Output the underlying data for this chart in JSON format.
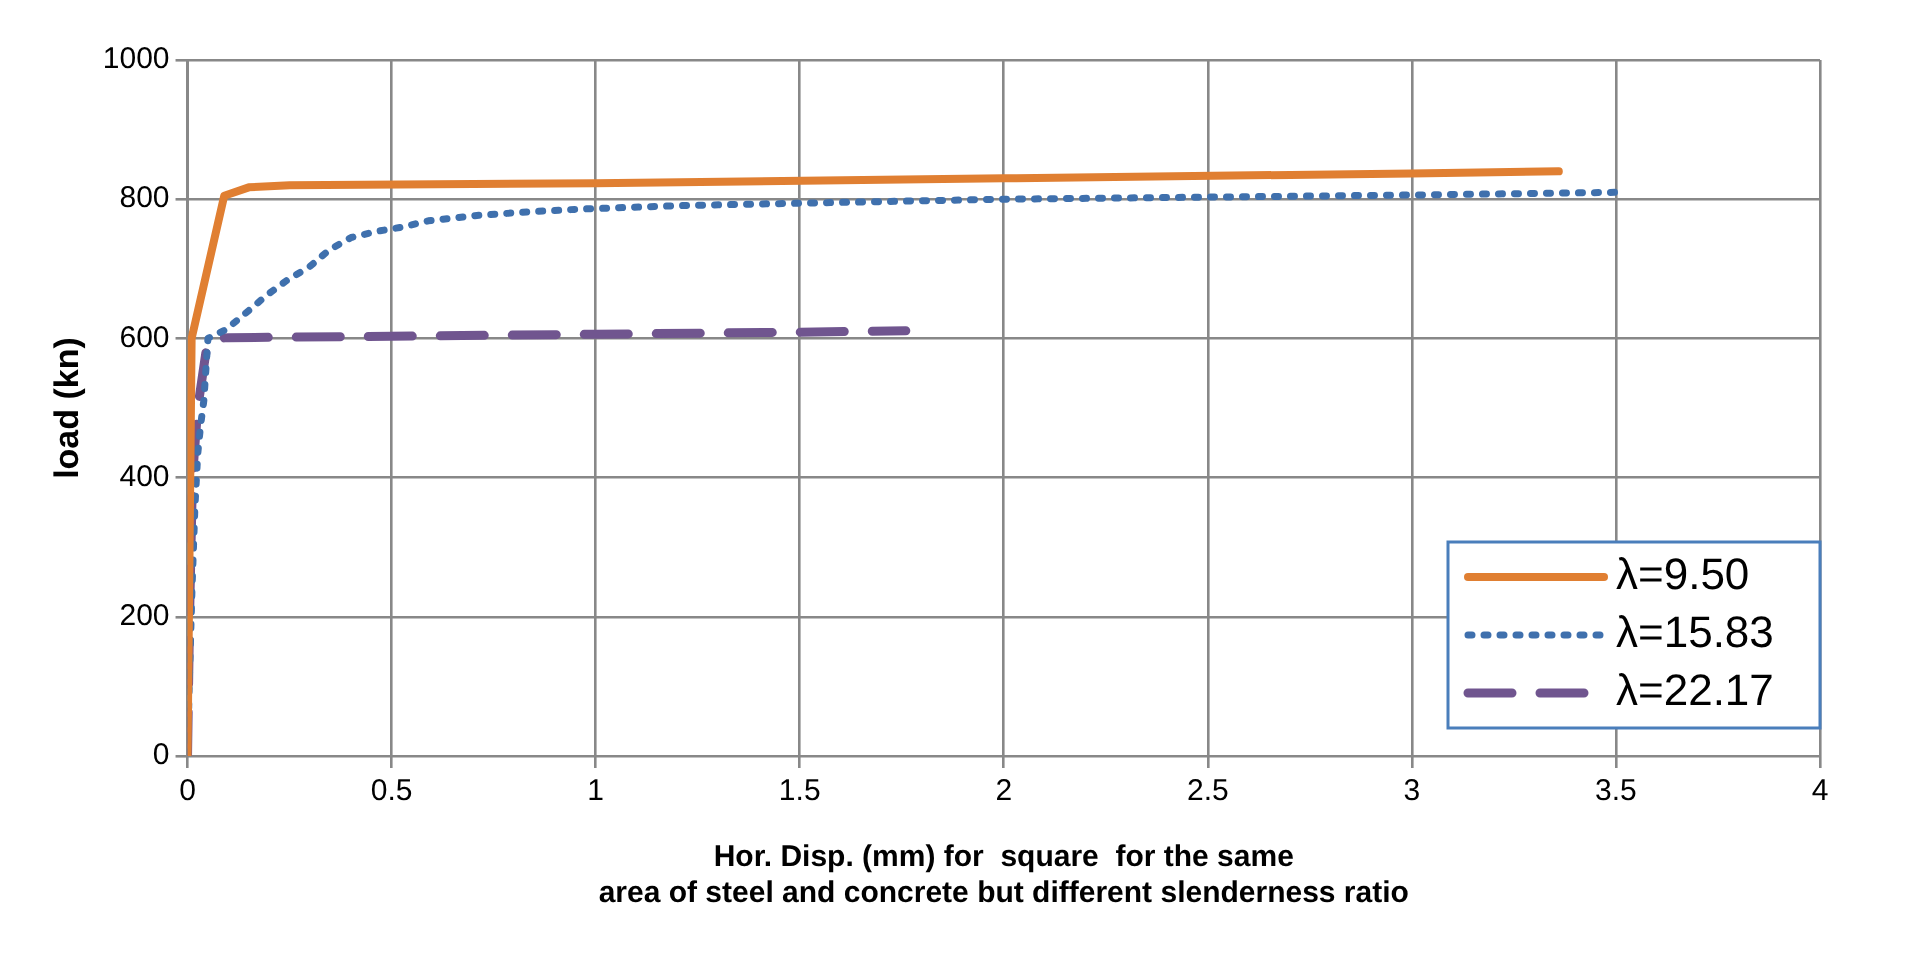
{
  "chart_data": {
    "type": "line",
    "xlabel": "Hor. Disp. (mm) for  square  for the same\narea of steel and concrete but different slenderness ratio",
    "ylabel": "load (kn)",
    "xlim": [
      0,
      4
    ],
    "xticks": [
      0,
      0.5,
      1,
      1.5,
      2,
      2.5,
      3,
      3.5,
      4
    ],
    "ylim": [
      0,
      1000
    ],
    "yticks": [
      0,
      200,
      400,
      600,
      800,
      1000
    ],
    "grid": true,
    "legend": "bottom right",
    "marker": "none",
    "series": [
      {
        "name": "λ=9.50",
        "color": "#e07f32",
        "line_style": "solid",
        "x": [
          0,
          0.005,
          0.01,
          0.09,
          0.15,
          0.25,
          1,
          2,
          3,
          3.36
        ],
        "values": [
          0,
          300,
          600,
          805,
          817,
          820,
          823,
          830,
          837,
          840
        ]
      },
      {
        "name": "λ=15.83",
        "color": "#3f70ad",
        "line_style": "dotted",
        "x": [
          0,
          0.005,
          0.011,
          0.018,
          0.025,
          0.032,
          0.04,
          0.05,
          0.095,
          0.144,
          0.194,
          0.245,
          0.299,
          0.347,
          0.401,
          0.466,
          0.527,
          0.59,
          0.716,
          0.842,
          0.97,
          1.22,
          2,
          3,
          3.52
        ],
        "values": [
          0,
          121,
          242,
          357,
          434,
          475,
          511,
          600,
          613,
          637,
          662,
          684,
          703,
          727,
          745,
          754,
          760,
          769,
          777,
          782,
          786,
          791,
          800,
          806,
          810
        ]
      },
      {
        "name": "λ=22.17",
        "color": "#70558f",
        "line_style": "dashed",
        "x": [
          0,
          0.005,
          0.012,
          0.025,
          0.045,
          0.06,
          0.1,
          0.5,
          1,
          1.5,
          1.76
        ],
        "values": [
          0,
          200,
          400,
          500,
          580,
          600,
          601,
          603,
          606,
          609,
          611
        ]
      }
    ]
  }
}
